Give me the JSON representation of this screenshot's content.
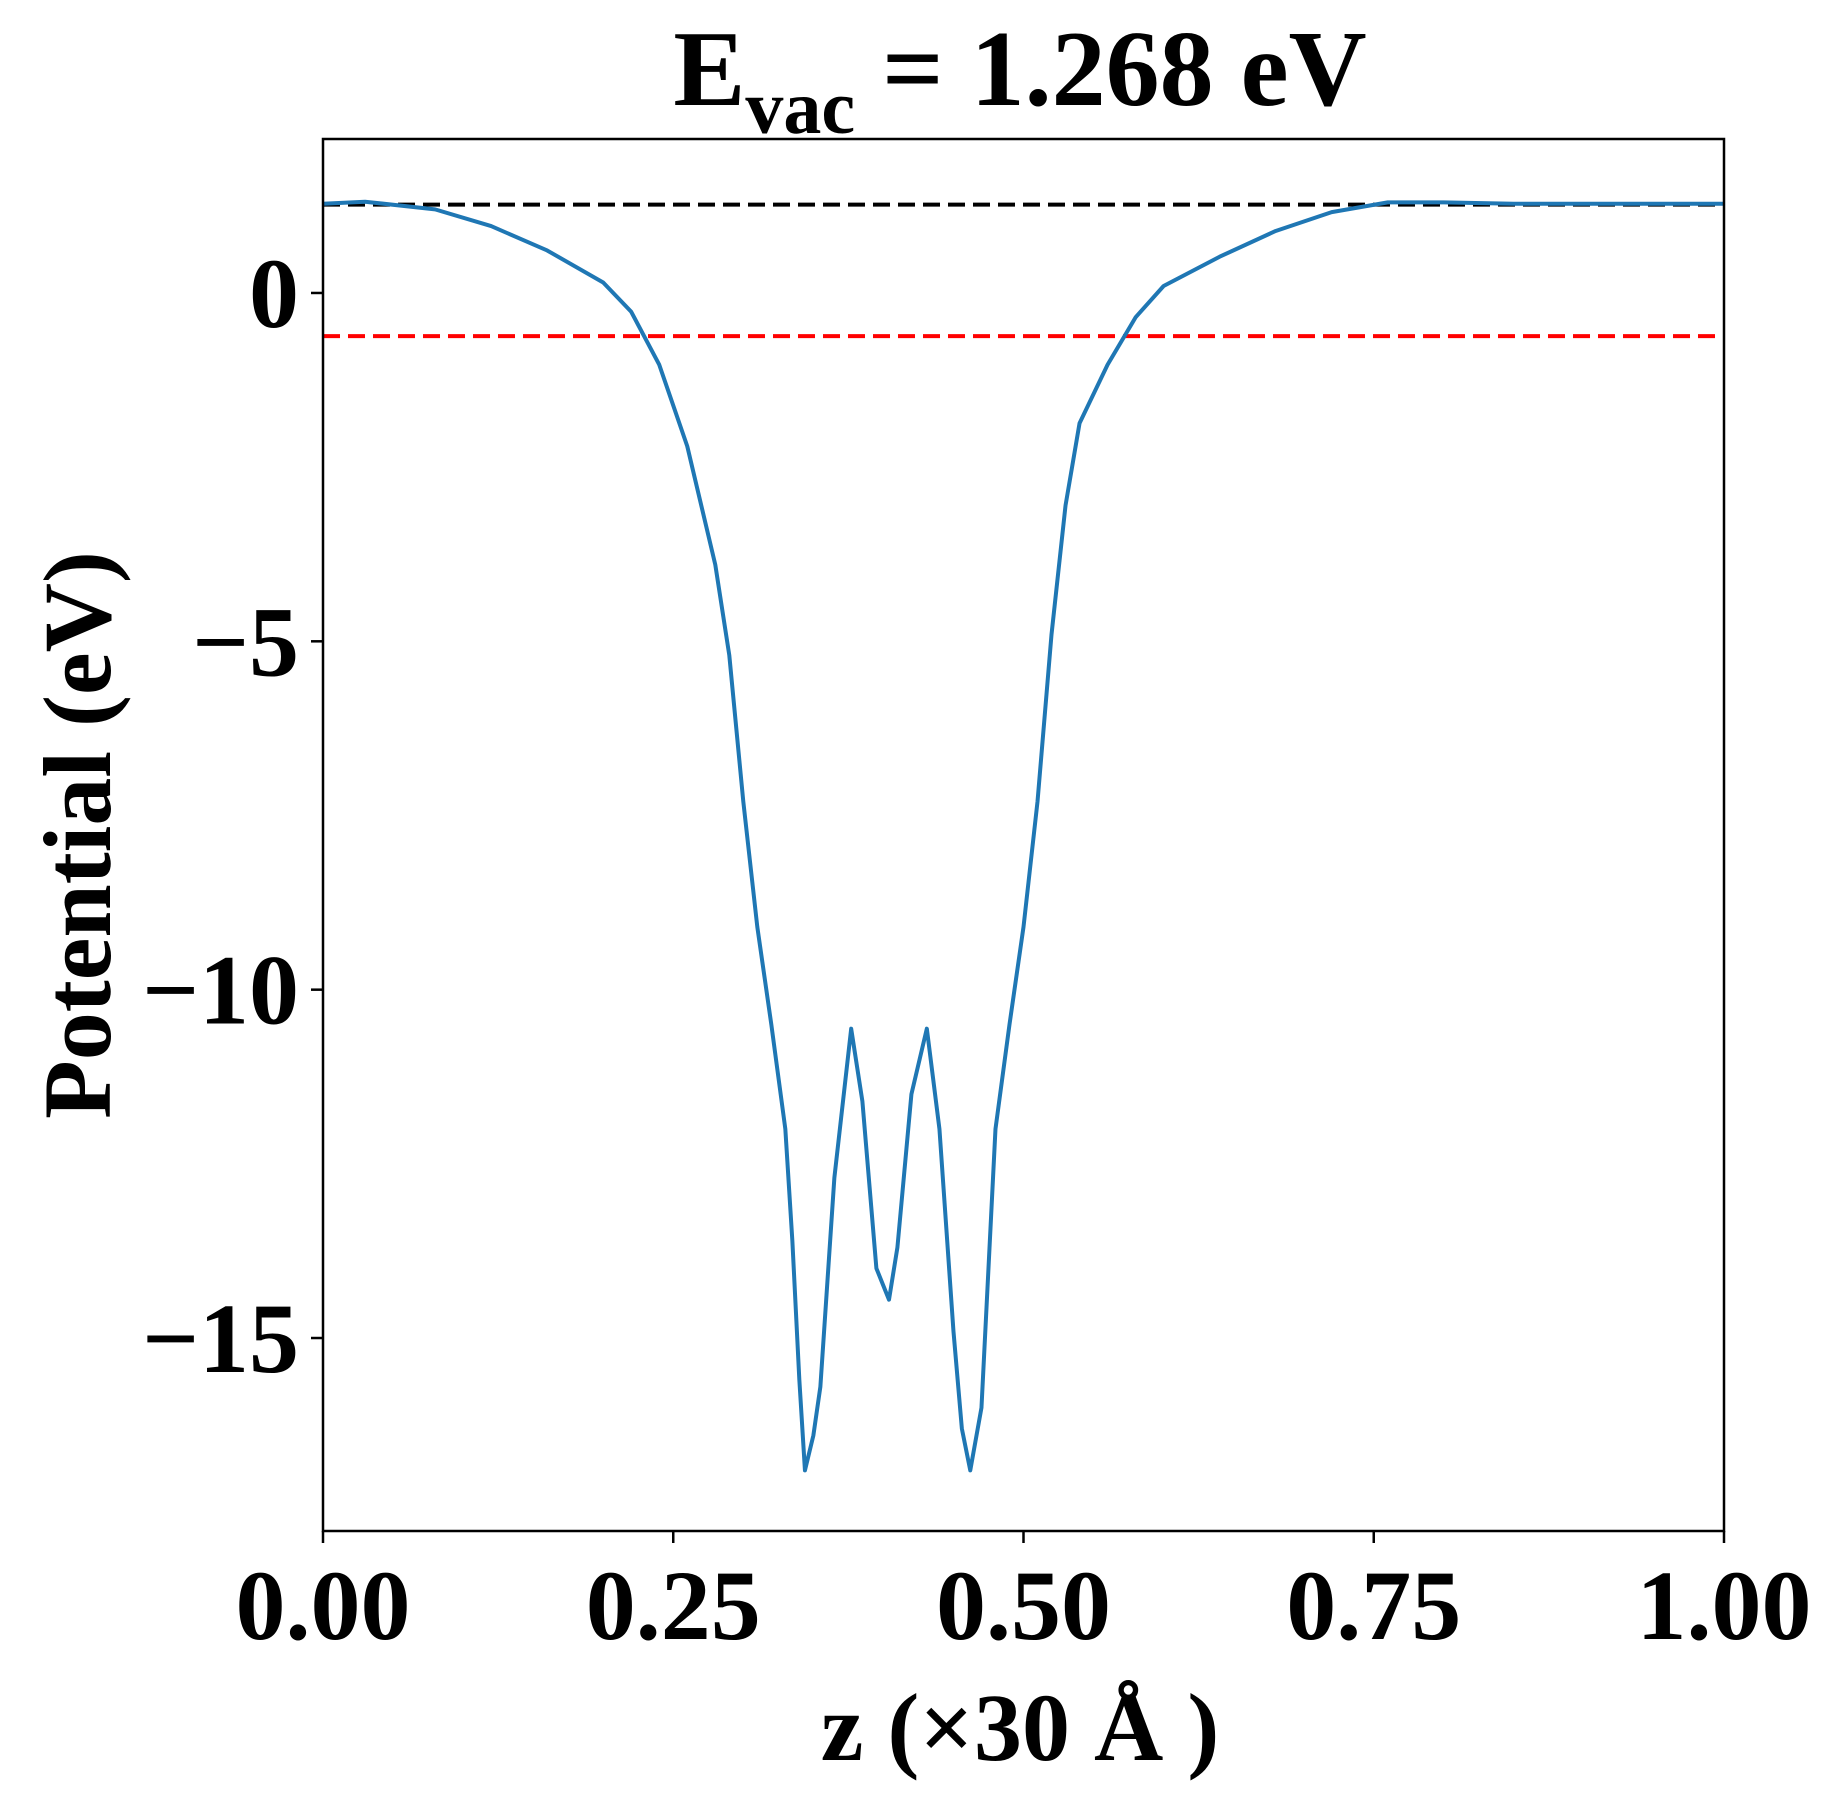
{
  "chart_data": {
    "type": "line",
    "title": [
      "E",
      "vac",
      " = 1.268 eV"
    ],
    "x_label": "z (×30 Å )",
    "y_label": "Potential (eV)",
    "x": [
      0.0,
      0.03,
      0.08,
      0.12,
      0.16,
      0.2,
      0.22,
      0.24,
      0.26,
      0.28,
      0.29,
      0.3,
      0.31,
      0.32,
      0.33,
      0.335,
      0.34,
      0.344,
      0.35,
      0.355,
      0.365,
      0.377,
      0.385,
      0.395,
      0.404,
      0.41,
      0.42,
      0.431,
      0.44,
      0.45,
      0.456,
      0.462,
      0.47,
      0.48,
      0.49,
      0.5,
      0.51,
      0.52,
      0.53,
      0.54,
      0.56,
      0.58,
      0.6,
      0.64,
      0.68,
      0.72,
      0.76,
      0.8,
      0.85,
      0.9,
      1.0
    ],
    "series": [
      {
        "name": "potential",
        "color": "#1f77b4",
        "values": [
          1.28,
          1.31,
          1.2,
          0.96,
          0.61,
          0.15,
          -0.27,
          -1.03,
          -2.2,
          -3.9,
          -5.2,
          -7.3,
          -9.1,
          -10.5,
          -12.0,
          -13.6,
          -15.6,
          -16.9,
          -16.4,
          -15.7,
          -12.7,
          -10.56,
          -11.6,
          -14.0,
          -14.45,
          -13.7,
          -11.5,
          -10.56,
          -12.0,
          -14.9,
          -16.3,
          -16.9,
          -16.0,
          -12.0,
          -10.5,
          -9.1,
          -7.3,
          -4.9,
          -3.05,
          -1.87,
          -1.03,
          -0.35,
          0.1,
          0.52,
          0.89,
          1.16,
          1.3,
          1.3,
          1.28,
          1.28,
          1.28
        ]
      }
    ],
    "hlines": [
      {
        "value": 1.268,
        "color": "#000000"
      },
      {
        "value": -0.62,
        "color": "#ff0000"
      }
    ],
    "xlim": [
      0,
      1
    ],
    "ylim": [
      -17.77,
      2.21
    ],
    "xticks": [
      {
        "value": 0,
        "label": "0.00"
      },
      {
        "value": 0.25,
        "label": "0.25"
      },
      {
        "value": 0.5,
        "label": "0.50"
      },
      {
        "value": 0.75,
        "label": "0.75"
      },
      {
        "value": 1,
        "label": "1.00"
      }
    ],
    "yticks": [
      {
        "value": 0,
        "label": "0"
      },
      {
        "value": -5,
        "label": "−5"
      },
      {
        "value": -10,
        "label": "−10"
      },
      {
        "value": -15,
        "label": "−15"
      }
    ],
    "grid": false
  }
}
